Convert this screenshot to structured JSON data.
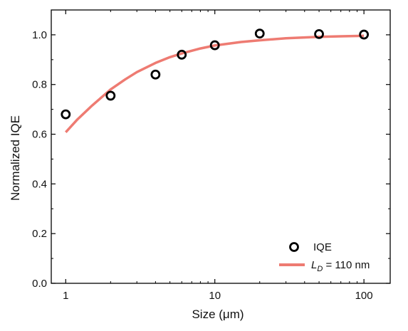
{
  "chart_data": {
    "type": "scatter",
    "xlabel": "Size (μm)",
    "ylabel": "Normalized IQE",
    "xscale": "log",
    "xlim": [
      0.8,
      150
    ],
    "ylim": [
      0.0,
      1.1
    ],
    "xticks": [
      1,
      10,
      100
    ],
    "xtick_labels": [
      "1",
      "10",
      "100"
    ],
    "yticks": [
      0.0,
      0.2,
      0.4,
      0.6,
      0.8,
      1.0
    ],
    "ytick_labels": [
      "0.0",
      "0.2",
      "0.4",
      "0.6",
      "0.8",
      "1.0"
    ],
    "grid": false,
    "legend_position": "bottom-right",
    "series": [
      {
        "name": "IQE",
        "kind": "scatter",
        "marker": "open-circle",
        "color": "#000000",
        "x": [
          1,
          2,
          4,
          6,
          10,
          20,
          50,
          100
        ],
        "y": [
          0.68,
          0.755,
          0.84,
          0.92,
          0.958,
          1.005,
          1.003,
          1.001
        ]
      },
      {
        "name": "L_D = 110 nm",
        "kind": "line",
        "color": "#ee7b72",
        "x": [
          1,
          1.2,
          1.5,
          2,
          2.5,
          3,
          4,
          5,
          6,
          8,
          10,
          15,
          20,
          30,
          50,
          70,
          100
        ],
        "y": [
          0.608,
          0.66,
          0.715,
          0.78,
          0.82,
          0.85,
          0.887,
          0.91,
          0.925,
          0.945,
          0.957,
          0.971,
          0.978,
          0.986,
          0.992,
          0.994,
          0.996
        ]
      }
    ],
    "legend": [
      {
        "label": "IQE",
        "marker": "open-circle"
      },
      {
        "label_main": "L",
        "label_sub": "D",
        "label_rest": " = 110 nm",
        "marker": "line"
      }
    ]
  }
}
